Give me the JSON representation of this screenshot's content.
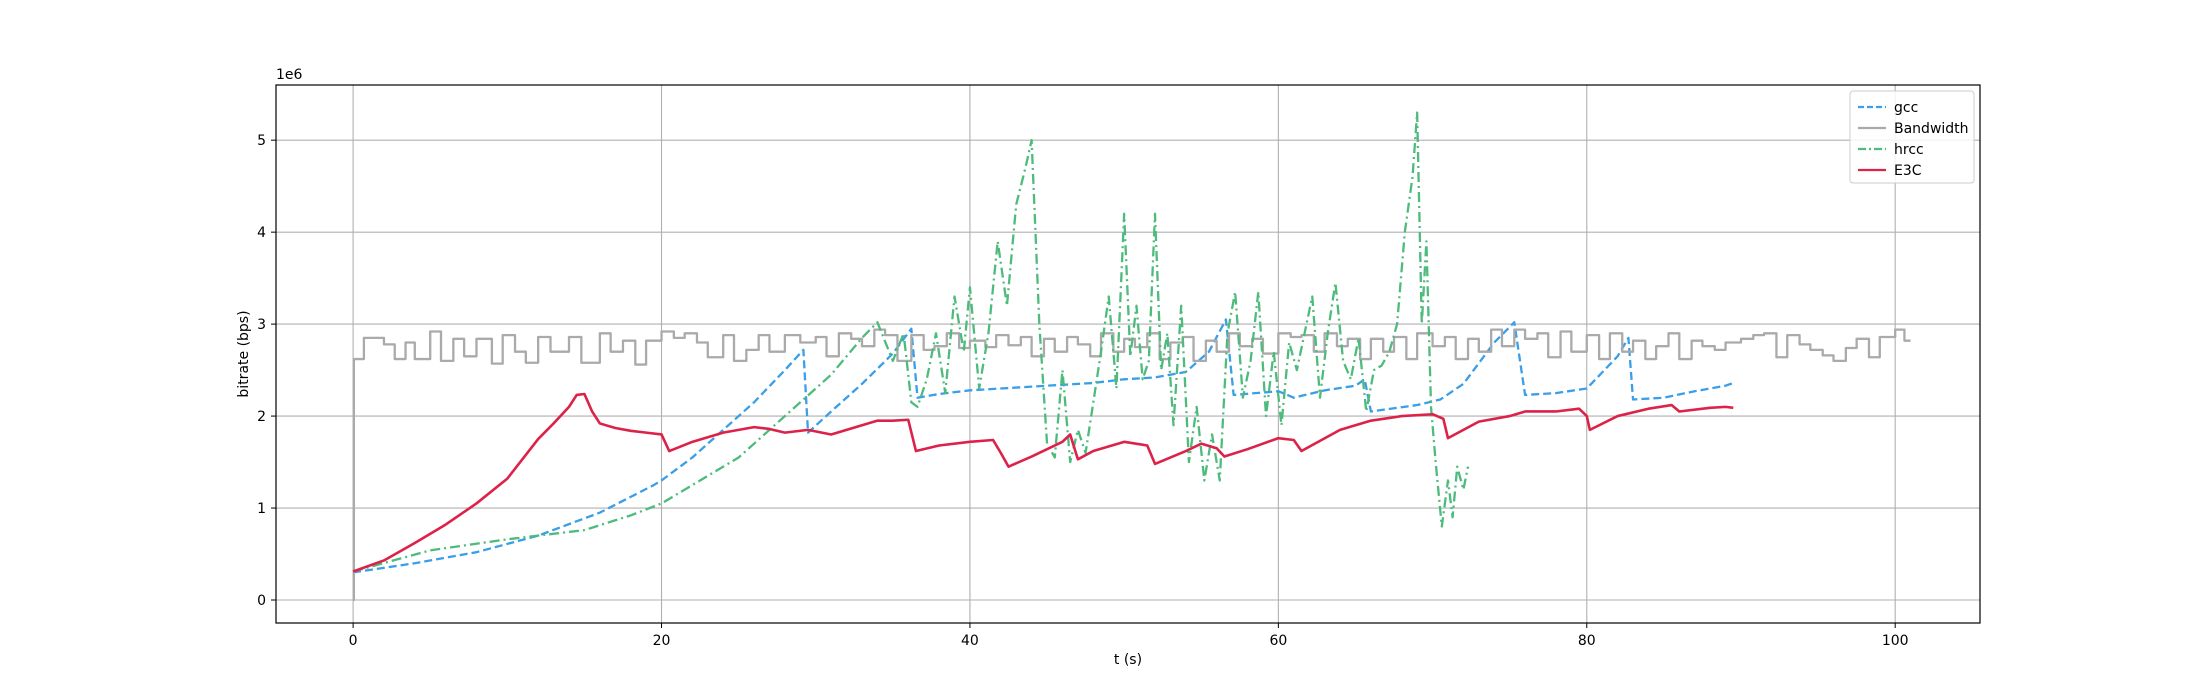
{
  "chart_data": {
    "type": "line",
    "title": "",
    "xlabel": "t (s)",
    "ylabel": "bitrate (bps)",
    "y_offset_text": "1e6",
    "xlim": [
      -5,
      105.5
    ],
    "ylim": [
      -250000,
      5600000
    ],
    "xticks": [
      0,
      20,
      40,
      60,
      80,
      100
    ],
    "yticks": [
      0,
      1000000,
      2000000,
      3000000,
      4000000,
      5000000
    ],
    "xtick_labels": [
      "0",
      "20",
      "40",
      "60",
      "80",
      "100"
    ],
    "ytick_labels": [
      "0",
      "1",
      "2",
      "3",
      "4",
      "5"
    ],
    "grid": true,
    "legend_position": "top-right",
    "series": [
      {
        "name": "gcc",
        "color": "#3a9ee8",
        "line_style": "dashed",
        "x": [
          0,
          4,
          8,
          12,
          16,
          19.5,
          20,
          22,
          24,
          26,
          28,
          29.2,
          29.5,
          31,
          33,
          35,
          36.2,
          36.6,
          38,
          40,
          42,
          44,
          46,
          48,
          50,
          52,
          54,
          55.5,
          56.6,
          57.1,
          60,
          61,
          63,
          65,
          65.6,
          66,
          69,
          70.5,
          72,
          74,
          75.3,
          76,
          78,
          80,
          82,
          82.7,
          83,
          85,
          87,
          89,
          89.5
        ],
        "y": [
          300000,
          400000,
          520000,
          700000,
          950000,
          1250000,
          1300000,
          1550000,
          1850000,
          2150000,
          2500000,
          2720000,
          1820000,
          2050000,
          2350000,
          2680000,
          2950000,
          2200000,
          2240000,
          2280000,
          2300000,
          2320000,
          2340000,
          2360000,
          2400000,
          2420000,
          2480000,
          2700000,
          3050000,
          2230000,
          2270000,
          2200000,
          2280000,
          2330000,
          2400000,
          2050000,
          2120000,
          2180000,
          2350000,
          2800000,
          3020000,
          2230000,
          2250000,
          2300000,
          2650000,
          2850000,
          2180000,
          2200000,
          2270000,
          2330000,
          2360000
        ]
      },
      {
        "name": "Bandwidth",
        "color": "#aaaaaa",
        "line_style": "solid-step",
        "x": [
          0,
          0.05,
          0.7,
          2,
          2.7,
          3.4,
          4,
          5,
          5.7,
          6.5,
          7.2,
          8,
          9,
          9.7,
          10.5,
          11.2,
          12,
          12.8,
          14,
          14.8,
          16,
          16.7,
          17.5,
          18.3,
          19,
          20,
          20.8,
          21.5,
          22.3,
          23,
          24,
          24.7,
          25.5,
          26.3,
          27,
          28,
          29,
          30,
          30.7,
          31.5,
          32.3,
          33,
          33.8,
          34.5,
          35.3,
          36.2,
          37,
          37.7,
          38.5,
          39.3,
          40,
          41,
          41.7,
          42.5,
          43.3,
          44,
          44.8,
          45.5,
          46.3,
          47,
          47.8,
          48.5,
          49.3,
          50,
          50.7,
          51.5,
          52.3,
          53,
          53.8,
          54.5,
          55.3,
          56,
          56.8,
          57.5,
          58.3,
          59,
          60,
          60.8,
          61.5,
          62.3,
          63,
          63.8,
          64.5,
          65.3,
          66,
          66.8,
          67.5,
          68.3,
          69,
          70,
          70.8,
          71.5,
          72.3,
          73,
          73.8,
          74.5,
          75.3,
          76,
          76.8,
          77.5,
          78.3,
          79,
          80,
          80.8,
          81.5,
          82.3,
          83,
          83.8,
          84.5,
          85.3,
          86,
          86.8,
          87.5,
          88.3,
          89,
          90,
          90.8,
          91.5,
          92.3,
          93,
          93.8,
          94.5,
          95.3,
          96,
          96.8,
          97.5,
          98.3,
          99,
          100,
          100.6,
          101
        ],
        "y": [
          0,
          2620000,
          2850000,
          2780000,
          2620000,
          2800000,
          2620000,
          2920000,
          2600000,
          2840000,
          2650000,
          2840000,
          2570000,
          2880000,
          2700000,
          2580000,
          2860000,
          2700000,
          2860000,
          2580000,
          2900000,
          2700000,
          2820000,
          2560000,
          2820000,
          2920000,
          2850000,
          2900000,
          2800000,
          2640000,
          2880000,
          2600000,
          2720000,
          2880000,
          2700000,
          2880000,
          2800000,
          2860000,
          2650000,
          2900000,
          2840000,
          2760000,
          2940000,
          2880000,
          2600000,
          2880000,
          2720000,
          2760000,
          2900000,
          2740000,
          2820000,
          2750000,
          2880000,
          2770000,
          2860000,
          2650000,
          2840000,
          2700000,
          2860000,
          2780000,
          2650000,
          2900000,
          2700000,
          2840000,
          2750000,
          2900000,
          2620000,
          2800000,
          2860000,
          2600000,
          2820000,
          2700000,
          2900000,
          2760000,
          2840000,
          2680000,
          2900000,
          2860000,
          2880000,
          2700000,
          2900000,
          2760000,
          2840000,
          2620000,
          2840000,
          2700000,
          2860000,
          2620000,
          2900000,
          2760000,
          2860000,
          2620000,
          2840000,
          2700000,
          2940000,
          2760000,
          2940000,
          2840000,
          2900000,
          2640000,
          2920000,
          2700000,
          2880000,
          2620000,
          2900000,
          2700000,
          2820000,
          2620000,
          2760000,
          2900000,
          2620000,
          2820000,
          2760000,
          2720000,
          2800000,
          2840000,
          2880000,
          2900000,
          2640000,
          2880000,
          2780000,
          2720000,
          2660000,
          2600000,
          2740000,
          2840000,
          2640000,
          2860000,
          2940000,
          2820000,
          2820000
        ]
      },
      {
        "name": "hrcc",
        "color": "#4cbb7c",
        "line_style": "dashdot",
        "x": [
          0,
          5,
          10,
          15,
          18,
          20,
          22,
          25,
          27,
          29,
          31,
          33,
          34,
          35,
          35.7,
          36.2,
          36.6,
          37.2,
          37.8,
          38.4,
          39,
          39.6,
          40,
          40.6,
          41.2,
          41.8,
          42.4,
          43,
          43.6,
          44,
          44.5,
          45,
          45.5,
          46,
          46.5,
          47,
          47.5,
          48,
          48.5,
          49,
          49.5,
          50,
          50.4,
          50.8,
          51.2,
          51.6,
          52,
          52.4,
          52.8,
          53.2,
          53.7,
          54.2,
          54.7,
          55.2,
          55.7,
          56.2,
          56.7,
          57.2,
          57.7,
          58.2,
          58.7,
          59.2,
          59.7,
          60.2,
          60.7,
          61.2,
          61.7,
          62.2,
          62.7,
          63.2,
          63.7,
          64.2,
          64.7,
          65.2,
          65.7,
          66.2,
          66.7,
          67.2,
          67.7,
          68.2,
          68.7,
          69,
          69.3,
          69.6,
          69.9,
          70.2,
          70.6,
          71,
          71.3,
          71.6,
          72,
          72.3
        ],
        "y": [
          310000,
          540000,
          660000,
          760000,
          920000,
          1050000,
          1250000,
          1550000,
          1850000,
          2150000,
          2450000,
          2850000,
          3020000,
          2600000,
          2900000,
          2150000,
          2100000,
          2400000,
          2900000,
          2250000,
          3300000,
          2700000,
          3400000,
          2300000,
          2900000,
          3900000,
          3200000,
          4300000,
          4700000,
          5000000,
          3000000,
          1700000,
          1550000,
          2500000,
          1500000,
          1850000,
          1600000,
          2150000,
          2700000,
          3300000,
          2300000,
          4200000,
          2650000,
          3200000,
          2400000,
          2600000,
          4200000,
          2500000,
          2900000,
          1900000,
          3200000,
          1500000,
          2100000,
          1300000,
          1800000,
          1300000,
          2900000,
          3350000,
          2200000,
          2600000,
          3350000,
          2000000,
          2700000,
          1900000,
          2800000,
          2500000,
          2900000,
          3300000,
          2200000,
          2900000,
          3450000,
          2600000,
          2400000,
          2850000,
          2050000,
          2500000,
          2550000,
          2700000,
          3000000,
          4000000,
          4600000,
          5300000,
          3000000,
          3900000,
          2100000,
          1500000,
          800000,
          1300000,
          900000,
          1450000,
          1200000,
          1450000
        ]
      },
      {
        "name": "E3C",
        "color": "#dc2248",
        "line_style": "solid",
        "x": [
          0,
          2,
          4,
          6,
          8,
          10,
          12,
          13,
          14,
          14.5,
          15,
          15.5,
          16,
          17,
          18,
          19,
          20,
          20.5,
          22,
          24,
          26,
          27,
          28,
          29.5,
          31,
          33,
          34,
          35,
          36,
          36.5,
          38,
          40,
          41.5,
          42,
          42.5,
          44,
          46,
          46.5,
          47,
          48,
          50,
          51.5,
          52,
          54,
          55,
          56,
          56.5,
          58,
          60,
          61,
          61.5,
          64,
          66,
          68,
          70,
          70.7,
          71,
          73,
          75,
          76,
          78,
          79.5,
          80,
          80.2,
          82,
          84,
          85.5,
          86,
          88,
          89,
          89.5
        ],
        "y": [
          310000,
          430000,
          620000,
          820000,
          1050000,
          1320000,
          1750000,
          1920000,
          2100000,
          2230000,
          2240000,
          2050000,
          1920000,
          1870000,
          1840000,
          1820000,
          1800000,
          1620000,
          1720000,
          1820000,
          1880000,
          1860000,
          1820000,
          1850000,
          1800000,
          1900000,
          1950000,
          1950000,
          1960000,
          1620000,
          1680000,
          1720000,
          1740000,
          1600000,
          1450000,
          1560000,
          1720000,
          1800000,
          1530000,
          1620000,
          1720000,
          1680000,
          1480000,
          1620000,
          1700000,
          1650000,
          1560000,
          1640000,
          1760000,
          1740000,
          1620000,
          1850000,
          1950000,
          2000000,
          2020000,
          1970000,
          1760000,
          1940000,
          2000000,
          2050000,
          2050000,
          2080000,
          2000000,
          1850000,
          2000000,
          2080000,
          2120000,
          2050000,
          2090000,
          2100000,
          2090000
        ]
      }
    ]
  }
}
